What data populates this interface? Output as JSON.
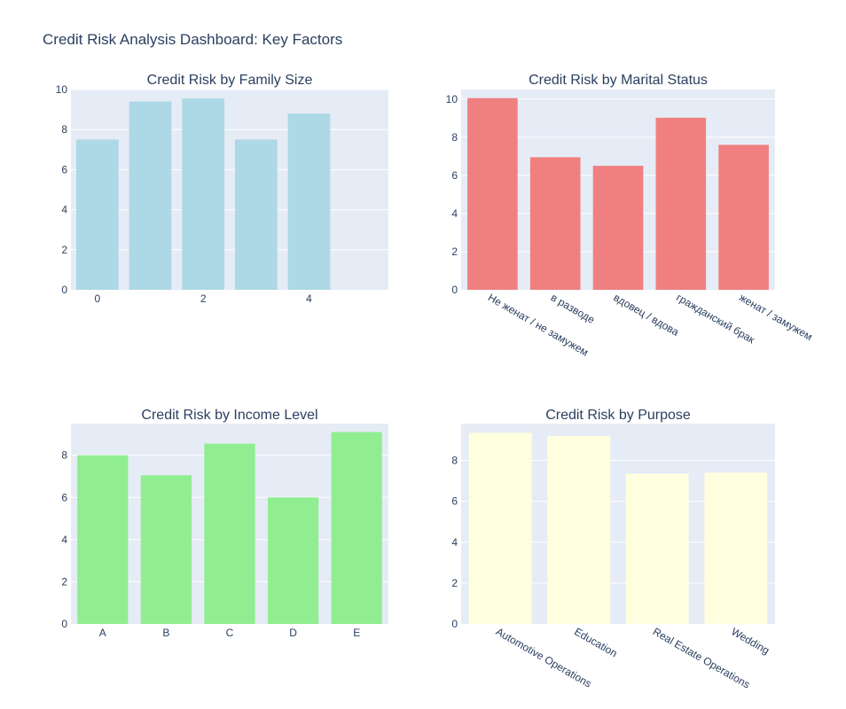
{
  "page": {
    "title": "Credit Risk Analysis Dashboard: Key Factors"
  },
  "chart_data": [
    {
      "type": "bar",
      "title": "Credit Risk by Family Size",
      "xlabel": "",
      "ylabel": "",
      "x_axis": "numeric",
      "xlim": [
        -0.5,
        5.5
      ],
      "x_ticks": [
        0,
        2,
        4
      ],
      "x": [
        0,
        1,
        2,
        3,
        4
      ],
      "values": [
        7.5,
        9.4,
        9.55,
        7.5,
        8.8
      ],
      "ylim": [
        0,
        10
      ],
      "y_ticks": [
        0,
        2,
        4,
        6,
        8,
        10
      ],
      "color": "#add8e6",
      "grid": true
    },
    {
      "type": "bar",
      "title": "Credit Risk by Marital Status",
      "xlabel": "",
      "ylabel": "",
      "x_axis": "category",
      "categories": [
        "Не женат / не замужем",
        "в разводе",
        "вдовец / вдова",
        "гражданский брак",
        "женат / замужем"
      ],
      "values": [
        10.05,
        6.95,
        6.5,
        9.02,
        7.6
      ],
      "ylim": [
        0,
        10.5
      ],
      "y_ticks": [
        0,
        2,
        4,
        6,
        8,
        10
      ],
      "tick_angle": 30,
      "color": "#f08080",
      "grid": true
    },
    {
      "type": "bar",
      "title": "Credit Risk by Income Level",
      "xlabel": "",
      "ylabel": "",
      "x_axis": "category",
      "categories": [
        "A",
        "B",
        "C",
        "D",
        "E"
      ],
      "values": [
        8.0,
        7.05,
        8.55,
        6.0,
        9.1
      ],
      "ylim": [
        0,
        9.5
      ],
      "y_ticks": [
        0,
        2,
        4,
        6,
        8
      ],
      "tick_angle": 0,
      "color": "#90ee90",
      "grid": true
    },
    {
      "type": "bar",
      "title": "Credit Risk by Purpose",
      "xlabel": "",
      "ylabel": "",
      "x_axis": "category",
      "categories": [
        "Automotive Operations",
        "Education",
        "Real Estate Operations",
        "Wedding"
      ],
      "values": [
        9.35,
        9.2,
        7.35,
        7.4
      ],
      "ylim": [
        0,
        9.8
      ],
      "y_ticks": [
        0,
        2,
        4,
        6,
        8
      ],
      "tick_angle": 30,
      "color": "#ffffe0",
      "grid": true
    }
  ]
}
